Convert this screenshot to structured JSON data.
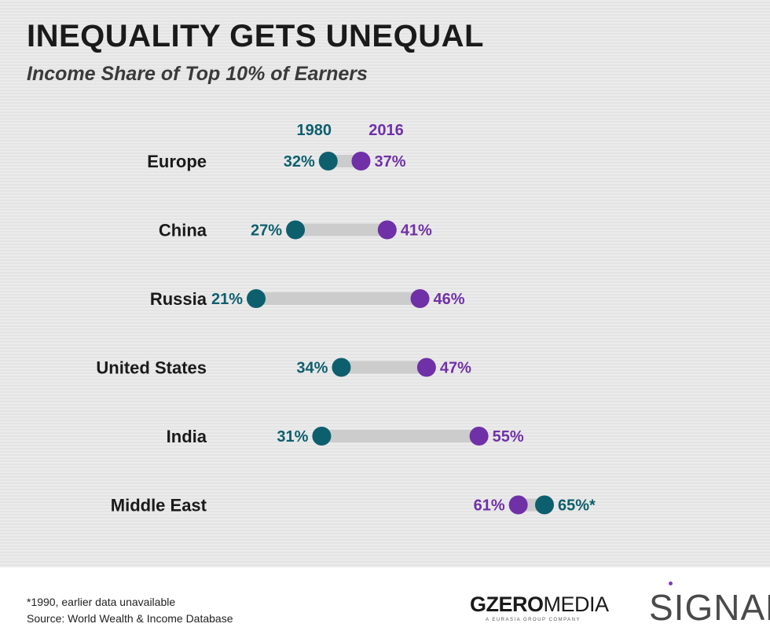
{
  "chart_data": {
    "type": "dumbbell",
    "title": "INEQUALITY GETS UNEQUAL",
    "subtitle": "Income Share of Top 10% of Earners",
    "legend": {
      "series_a": "1980",
      "series_b": "2016",
      "placement": "top"
    },
    "colors": {
      "series_a": "#0e5f6e",
      "series_b": "#7030a8",
      "connector": "#cccccc"
    },
    "x_range_percent": [
      21,
      65
    ],
    "rows": [
      {
        "category": "Europe",
        "v1980": 32,
        "v2016": 37,
        "label1980": "32%",
        "label2016": "37%"
      },
      {
        "category": "China",
        "v1980": 27,
        "v2016": 41,
        "label1980": "27%",
        "label2016": "41%"
      },
      {
        "category": "Russia",
        "v1980": 21,
        "v2016": 46,
        "label1980": "21%",
        "label2016": "46%"
      },
      {
        "category": "United States",
        "v1980": 34,
        "v2016": 47,
        "label1980": "34%",
        "label2016": "47%"
      },
      {
        "category": "India",
        "v1980": 31,
        "v2016": 55,
        "label1980": "31%",
        "label2016": "55%"
      },
      {
        "category": "Middle East",
        "v1980": 65,
        "v2016": 61,
        "label1980": "65%*",
        "label2016": "61%"
      }
    ]
  },
  "footer": {
    "footnote": "*1990, earlier data unavailable",
    "source": "Source: World Wealth & Income Database",
    "logo_gzero_bold": "GZERO",
    "logo_gzero_light": "MEDIA",
    "logo_gzero_sub": "A EURASIA GROUP COMPANY",
    "logo_signal": "SIGNAL"
  }
}
